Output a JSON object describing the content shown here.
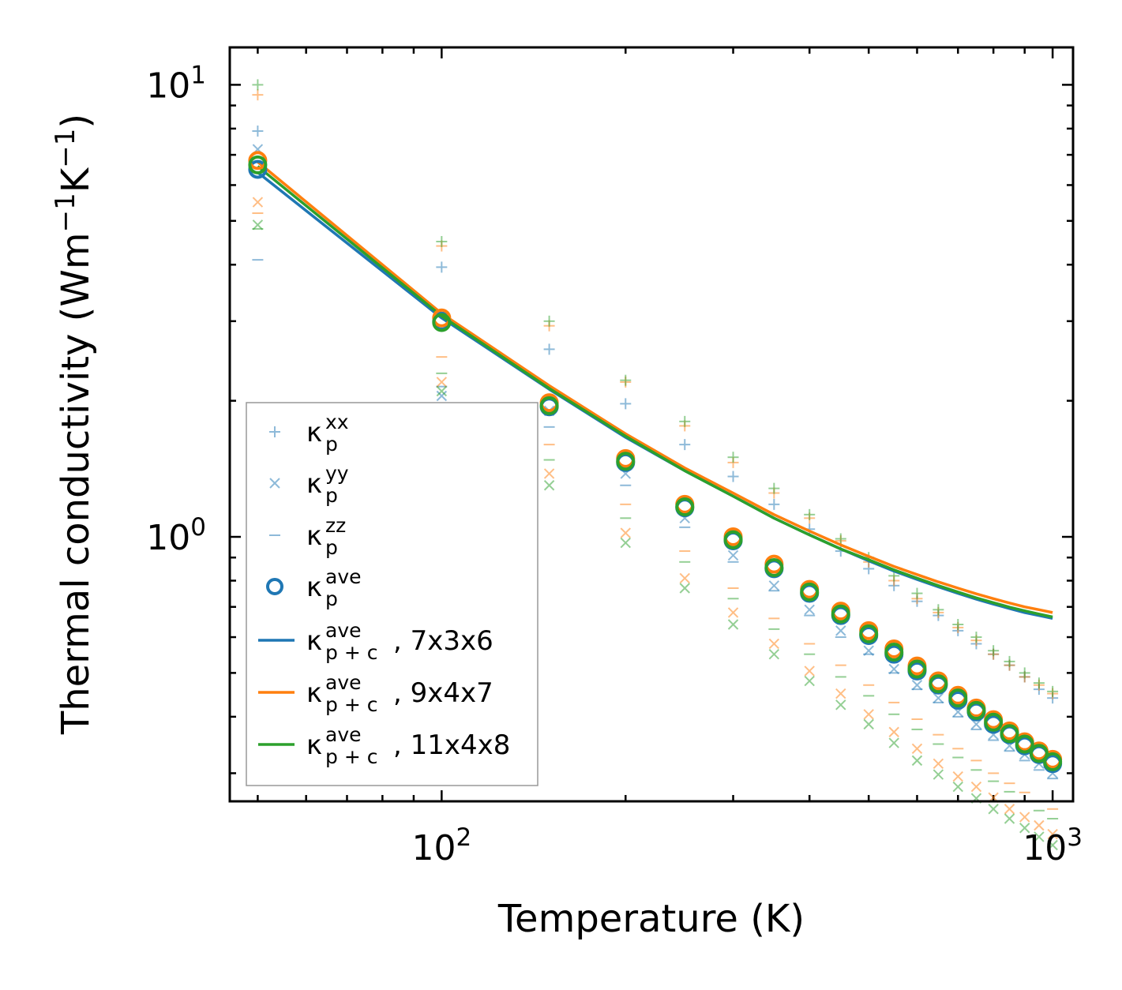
{
  "chart_data": {
    "type": "scatter",
    "title": "",
    "xlabel": "Temperature (K)",
    "ylabel_base": "Thermal conductivity (Wm",
    "ylabel_exp1": "−1",
    "ylabel_mid": "K",
    "ylabel_exp2": "−1",
    "ylabel_end": ")",
    "xscale": "log",
    "yscale": "log",
    "xlim": [
      45,
      1080
    ],
    "ylim": [
      0.26,
      12.1
    ],
    "x_ticks": [
      {
        "value": 100,
        "base": "10",
        "exp": "2"
      },
      {
        "value": 1000,
        "base": "10",
        "exp": "3"
      }
    ],
    "y_ticks": [
      {
        "value": 1,
        "base": "10",
        "exp": "0"
      },
      {
        "value": 10,
        "base": "10",
        "exp": "1"
      }
    ],
    "colors": {
      "blue": "#1f77b4",
      "orange": "#ff7f0e",
      "green": "#2ca02c"
    },
    "x": [
      50,
      100,
      150,
      200,
      250,
      300,
      350,
      400,
      450,
      500,
      550,
      600,
      650,
      700,
      750,
      800,
      850,
      900,
      950,
      1000
    ],
    "component_series": [
      {
        "grid": "7x3x6",
        "color": "#1f77b4",
        "kxx": [
          7.9,
          3.95,
          2.6,
          1.97,
          1.6,
          1.36,
          1.18,
          1.04,
          0.93,
          0.85,
          0.78,
          0.72,
          0.67,
          0.62,
          0.58,
          0.55,
          0.52,
          0.49,
          0.46,
          0.44
        ],
        "kyy": [
          7.2,
          2.05,
          1.9,
          1.38,
          1.1,
          0.91,
          0.78,
          0.69,
          0.62,
          0.56,
          0.51,
          0.47,
          0.44,
          0.41,
          0.385,
          0.365,
          0.345,
          0.33,
          0.315,
          0.3
        ],
        "kzz": [
          4.1,
          2.15,
          1.75,
          1.3,
          1.05,
          0.88,
          0.76,
          0.67,
          0.6,
          0.55,
          0.5,
          0.46,
          0.43,
          0.4,
          0.375,
          0.355,
          0.336,
          0.32,
          0.305,
          0.292
        ]
      },
      {
        "grid": "9x4x7",
        "color": "#ff7f0e",
        "kxx": [
          9.5,
          4.4,
          2.93,
          2.2,
          1.76,
          1.46,
          1.25,
          1.1,
          0.98,
          0.88,
          0.8,
          0.73,
          0.68,
          0.63,
          0.59,
          0.55,
          0.52,
          0.49,
          0.47,
          0.45
        ],
        "kyy": [
          5.5,
          2.2,
          1.38,
          1.02,
          0.81,
          0.68,
          0.58,
          0.505,
          0.45,
          0.405,
          0.37,
          0.34,
          0.315,
          0.295,
          0.28,
          0.265,
          0.25,
          0.24,
          0.23,
          0.22
        ],
        "kzz": [
          5.2,
          2.5,
          1.6,
          1.18,
          0.93,
          0.77,
          0.66,
          0.58,
          0.52,
          0.47,
          0.43,
          0.395,
          0.365,
          0.34,
          0.32,
          0.3,
          0.285,
          0.272,
          0.26,
          0.25
        ]
      },
      {
        "grid": "11x4x8",
        "color": "#2ca02c",
        "kxx": [
          10.0,
          4.5,
          3.0,
          2.22,
          1.8,
          1.5,
          1.28,
          1.12,
          0.99,
          0.9,
          0.82,
          0.75,
          0.69,
          0.64,
          0.6,
          0.56,
          0.53,
          0.5,
          0.475,
          0.455
        ],
        "kyy": [
          4.9,
          2.1,
          1.3,
          0.97,
          0.77,
          0.64,
          0.55,
          0.48,
          0.425,
          0.385,
          0.35,
          0.32,
          0.298,
          0.28,
          0.264,
          0.25,
          0.238,
          0.227,
          0.217,
          0.208
        ],
        "kzz": [
          4.8,
          2.3,
          1.48,
          1.1,
          0.88,
          0.73,
          0.625,
          0.55,
          0.49,
          0.445,
          0.405,
          0.375,
          0.348,
          0.325,
          0.305,
          0.288,
          0.273,
          0.26,
          0.248,
          0.238
        ]
      }
    ],
    "ave_series": [
      {
        "grid": "7x3x6",
        "color": "#1f77b4",
        "values": [
          6.5,
          3.0,
          1.94,
          1.46,
          1.16,
          0.98,
          0.85,
          0.75,
          0.67,
          0.605,
          0.55,
          0.505,
          0.47,
          0.435,
          0.41,
          0.385,
          0.365,
          0.345,
          0.33,
          0.315
        ]
      },
      {
        "grid": "9x4x7",
        "color": "#ff7f0e",
        "values": [
          6.8,
          3.05,
          1.98,
          1.49,
          1.18,
          1.0,
          0.87,
          0.765,
          0.685,
          0.62,
          0.565,
          0.518,
          0.48,
          0.446,
          0.418,
          0.394,
          0.372,
          0.352,
          0.336,
          0.322
        ]
      },
      {
        "grid": "11x4x8",
        "color": "#2ca02c",
        "values": [
          6.65,
          2.98,
          1.95,
          1.47,
          1.165,
          0.985,
          0.855,
          0.755,
          0.675,
          0.61,
          0.556,
          0.51,
          0.473,
          0.44,
          0.413,
          0.389,
          0.367,
          0.348,
          0.332,
          0.318
        ]
      }
    ],
    "line_series": [
      {
        "name": "7x3x6",
        "color": "#1f77b4",
        "values": [
          6.4,
          3.05,
          2.12,
          1.66,
          1.4,
          1.23,
          1.1,
          1.01,
          0.94,
          0.885,
          0.84,
          0.805,
          0.775,
          0.75,
          0.728,
          0.71,
          0.694,
          0.68,
          0.67,
          0.66
        ]
      },
      {
        "name": "9x4x7",
        "color": "#ff7f0e",
        "values": [
          6.75,
          3.12,
          2.16,
          1.69,
          1.42,
          1.25,
          1.12,
          1.03,
          0.96,
          0.905,
          0.86,
          0.825,
          0.795,
          0.77,
          0.748,
          0.73,
          0.714,
          0.7,
          0.69,
          0.68
        ]
      },
      {
        "name": "11x4x8",
        "color": "#2ca02c",
        "values": [
          6.6,
          3.08,
          2.13,
          1.67,
          1.4,
          1.23,
          1.1,
          1.01,
          0.94,
          0.89,
          0.845,
          0.81,
          0.78,
          0.755,
          0.733,
          0.715,
          0.699,
          0.686,
          0.675,
          0.665
        ]
      }
    ],
    "legend": {
      "placement": "lower-left",
      "entries": [
        {
          "marker": "plus",
          "color": "#1f77b4",
          "kappa": "κ",
          "sub": "p",
          "sup": "xx",
          "suffix": ""
        },
        {
          "marker": "cross",
          "color": "#1f77b4",
          "kappa": "κ",
          "sub": "p",
          "sup": "yy",
          "suffix": ""
        },
        {
          "marker": "dash",
          "color": "#1f77b4",
          "kappa": "κ",
          "sub": "p",
          "sup": "zz",
          "suffix": ""
        },
        {
          "marker": "circle",
          "color": "#1f77b4",
          "kappa": "κ",
          "sub": "p",
          "sup": "ave",
          "suffix": ""
        },
        {
          "marker": "line",
          "color": "#1f77b4",
          "kappa": "κ",
          "sub": "p + c",
          "sup": "ave",
          "suffix": ", 7x3x6"
        },
        {
          "marker": "line",
          "color": "#ff7f0e",
          "kappa": "κ",
          "sub": "p + c",
          "sup": "ave",
          "suffix": ", 9x4x7"
        },
        {
          "marker": "line",
          "color": "#2ca02c",
          "kappa": "κ",
          "sub": "p + c",
          "sup": "ave",
          "suffix": ", 11x4x8"
        }
      ]
    }
  }
}
